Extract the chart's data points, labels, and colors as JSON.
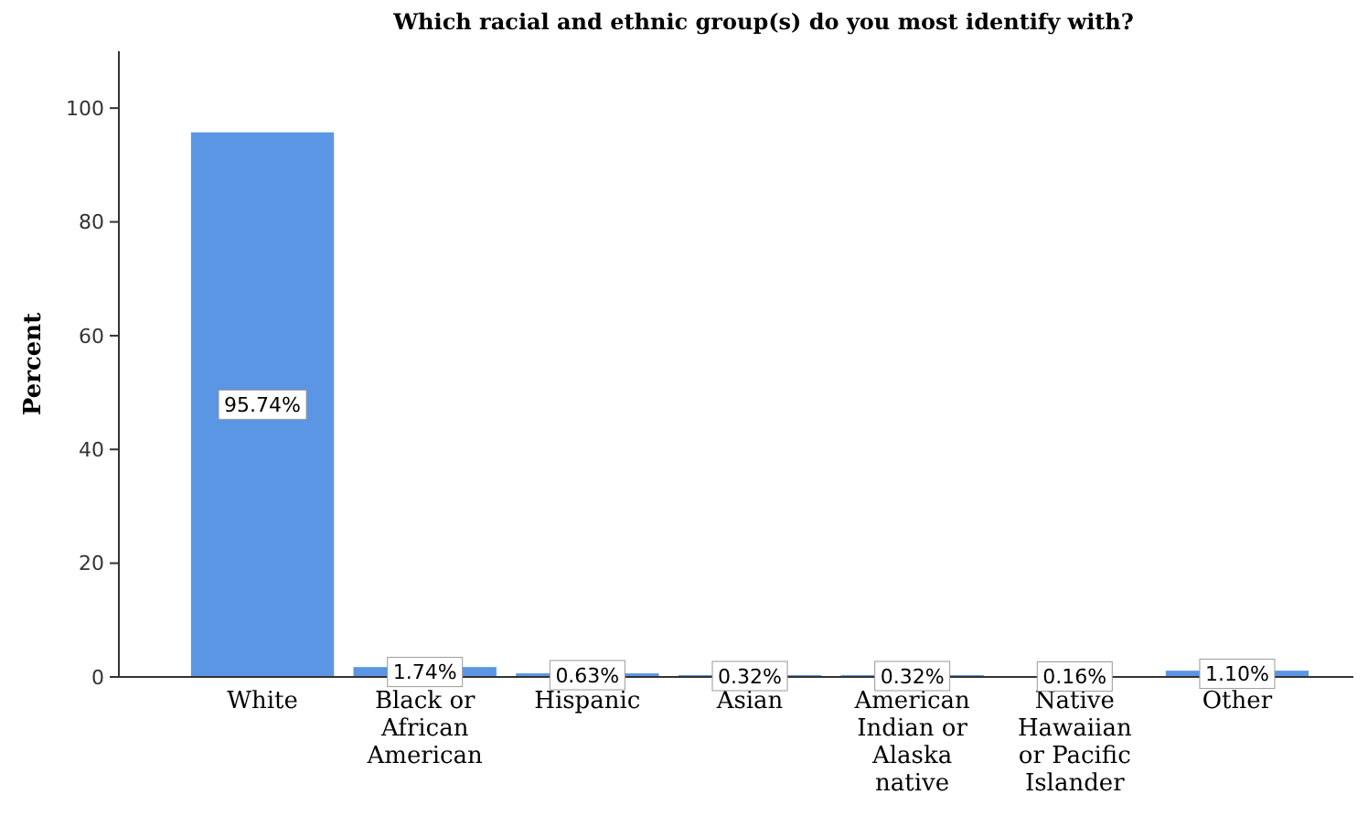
{
  "chart_data": {
    "type": "bar",
    "title": "Which racial and ethnic group(s) do you most identify with?",
    "ylabel": "Percent",
    "categories": [
      "White",
      "Black or African American",
      "Hispanic",
      "Asian",
      "American Indian or Alaska native",
      "Native Hawaiian or Pacific Islander",
      "Other"
    ],
    "values": [
      95.74,
      1.74,
      0.63,
      0.32,
      0.32,
      0.16,
      1.1
    ],
    "value_labels": [
      "95.74%",
      "1.74%",
      "0.63%",
      "0.32%",
      "0.32%",
      "0.16%",
      "1.10%"
    ],
    "color": "#5a96e3",
    "ylim": [
      0,
      110
    ],
    "yticks": [
      0,
      20,
      40,
      60,
      80,
      100
    ],
    "grid": false
  }
}
